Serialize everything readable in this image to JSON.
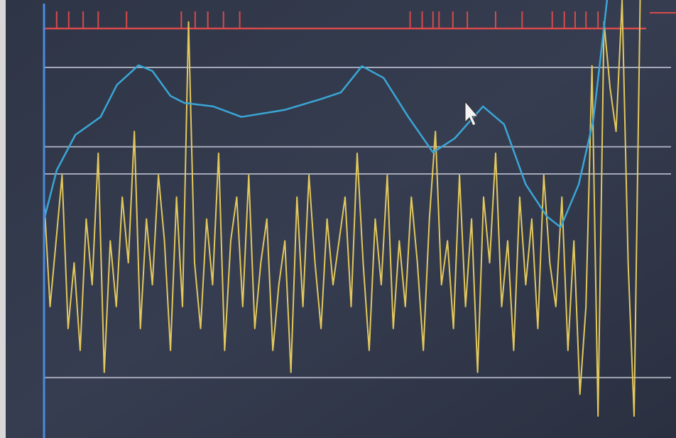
{
  "chart_data": {
    "type": "line",
    "xlim": [
      0,
      100
    ],
    "ylim": [
      0,
      100
    ],
    "reference_lines": [
      84.6,
      66.5,
      60.3,
      13.8
    ],
    "event_line": 93.5,
    "events": [
      2.1,
      4.1,
      6.5,
      9.0,
      13.7,
      22.8,
      25.1,
      27.2,
      29.8,
      32.5,
      60.8,
      62.8,
      64.6,
      65.6,
      67.9,
      70.3,
      75.0,
      79.4,
      84.4,
      86.4,
      88.2,
      90.0,
      92.0
    ],
    "series": [
      {
        "color": "#e3c85c",
        "x": [
          0,
          1,
          2,
          3,
          4,
          5,
          6,
          7,
          8,
          9,
          10,
          11,
          12,
          13,
          14,
          15,
          16,
          17,
          18,
          19,
          20,
          21,
          22,
          23,
          24,
          25,
          26,
          27,
          28,
          29,
          30,
          31,
          32,
          33,
          34,
          35,
          36,
          37,
          38,
          39,
          40,
          41,
          42,
          43,
          44,
          45,
          46,
          47,
          48,
          49,
          50,
          51,
          52,
          53,
          54,
          55,
          56,
          57,
          58,
          59,
          60,
          61,
          62,
          63,
          64,
          65,
          66,
          67,
          68,
          69,
          70,
          71,
          72,
          73,
          74,
          75,
          76,
          77,
          78,
          79,
          80,
          81,
          82,
          83,
          84,
          85,
          86,
          87,
          88,
          89,
          90,
          91,
          92,
          93,
          94,
          95,
          96,
          97,
          98,
          99
        ],
        "values": [
          55,
          30,
          45,
          60,
          25,
          40,
          20,
          50,
          35,
          65,
          15,
          45,
          30,
          55,
          40,
          70,
          25,
          50,
          35,
          60,
          45,
          20,
          55,
          30,
          95,
          40,
          25,
          50,
          35,
          65,
          20,
          45,
          55,
          30,
          60,
          25,
          40,
          50,
          20,
          35,
          45,
          15,
          55,
          30,
          60,
          40,
          25,
          50,
          35,
          45,
          55,
          30,
          65,
          40,
          20,
          50,
          35,
          60,
          25,
          45,
          30,
          55,
          40,
          20,
          50,
          70,
          35,
          45,
          25,
          60,
          30,
          50,
          15,
          55,
          40,
          65,
          30,
          45,
          20,
          55,
          35,
          50,
          25,
          60,
          40,
          30,
          55,
          20,
          45,
          10,
          30,
          85,
          5,
          95,
          80,
          70,
          100,
          40,
          5,
          100
        ]
      },
      {
        "color": "#3aa6d6",
        "x": [
          0,
          2.1,
          5.2,
          9.4,
          12.1,
          15.7,
          18.0,
          21.0,
          23.3,
          28.1,
          32.8,
          39.9,
          45.8,
          49.3,
          52.8,
          56.4,
          60.5,
          64.6,
          68.2,
          72.9,
          76.4,
          80.0,
          83.5,
          85.8,
          88.8,
          91.2,
          92.3,
          93.5
        ],
        "values": [
          49.8,
          61.1,
          69.2,
          73.3,
          80.6,
          85.1,
          83.8,
          78.1,
          76.5,
          75.7,
          73.3,
          74.9,
          77.3,
          78.9,
          84.9,
          82.2,
          73.3,
          65.2,
          68.4,
          75.7,
          71.6,
          57.9,
          50.6,
          48.1,
          57.9,
          72.4,
          85.4,
          100
        ]
      }
    ]
  }
}
